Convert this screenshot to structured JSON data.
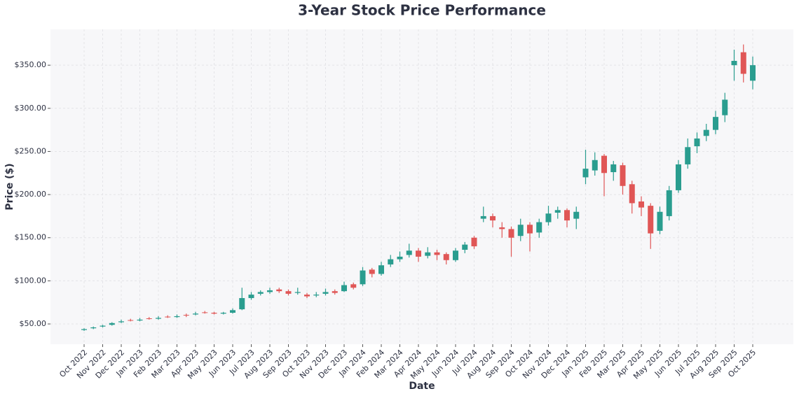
{
  "chart_data": {
    "type": "candlestick",
    "title": "3-Year Stock Price Performance",
    "x_label": "Date",
    "y_label": "Price ($)",
    "categories": [
      "Oct 2022",
      null,
      "Nov 2022",
      null,
      "Dec 2022",
      null,
      "Jan 2023",
      null,
      "Feb 2023",
      null,
      "Mar 2023",
      null,
      "Apr 2023",
      null,
      "May 2023",
      null,
      "Jun 2023",
      null,
      "Jul 2023",
      null,
      "Aug 2023",
      null,
      "Sep 2023",
      null,
      "Oct 2023",
      null,
      "Nov 2023",
      null,
      "Dec 2023",
      null,
      "Jan 2024",
      null,
      "Feb 2024",
      null,
      "Mar 2024",
      null,
      "Apr 2024",
      null,
      "May 2024",
      null,
      "Jun 2024",
      null,
      "Jul 2024",
      null,
      "Aug 2024",
      null,
      "Sep 2024",
      null,
      "Oct 2024",
      null,
      "Nov 2024",
      null,
      "Dec 2024",
      null,
      "Jan 2025",
      null,
      "Feb 2025",
      null,
      "Mar 2025",
      null,
      "Apr 2025",
      null,
      "May 2025",
      null,
      "Jun 2025",
      null,
      "Jul 2025",
      null,
      "Aug 2025",
      null,
      "Sep 2025",
      null,
      "Oct 2025"
    ],
    "open": [
      43,
      45,
      47,
      49,
      52,
      54.5,
      54,
      56.5,
      56,
      58.5,
      58,
      60.5,
      61,
      63.5,
      63,
      62,
      63,
      67,
      80,
      85,
      87,
      90,
      88,
      86,
      84,
      83,
      85,
      88,
      88,
      96,
      96,
      113,
      108,
      119,
      125,
      130,
      135,
      129,
      133,
      131,
      124,
      136,
      150,
      172,
      175,
      162,
      160,
      152,
      165,
      156,
      168,
      179,
      182,
      172,
      220,
      228,
      245,
      226,
      234,
      212,
      192,
      187,
      158,
      175,
      205,
      235,
      256,
      268,
      275,
      292,
      350,
      365,
      332
    ],
    "high": [
      45,
      47,
      49,
      52,
      55,
      56,
      57,
      58,
      59,
      60,
      61,
      62,
      64,
      65,
      64,
      64,
      68,
      92,
      87,
      89,
      92,
      92,
      90,
      92,
      86,
      87,
      91,
      90,
      99,
      98,
      116,
      115,
      122,
      130,
      134,
      143,
      138,
      139,
      136,
      133,
      138,
      145,
      152,
      186,
      178,
      168,
      163,
      172,
      168,
      172,
      187,
      186,
      184,
      186,
      252,
      249,
      247,
      239,
      237,
      216,
      198,
      190,
      186,
      210,
      240,
      265,
      272,
      282,
      297,
      318,
      368,
      374,
      360
    ],
    "low": [
      42,
      44,
      46,
      48,
      51,
      53,
      53,
      55,
      55,
      57,
      57,
      58,
      60,
      62,
      61,
      61,
      62,
      66,
      78,
      83,
      85,
      86,
      83,
      84,
      80,
      81,
      83,
      84,
      87,
      90,
      94,
      104,
      106,
      116,
      122,
      127,
      122,
      126,
      124,
      119,
      122,
      132,
      137,
      168,
      162,
      150,
      128,
      146,
      134,
      150,
      164,
      172,
      162,
      160,
      212,
      222,
      198,
      216,
      200,
      178,
      175,
      137,
      154,
      170,
      202,
      230,
      248,
      262,
      270,
      284,
      332,
      330,
      322
    ],
    "close": [
      44,
      46,
      48,
      51,
      53,
      54,
      55,
      56,
      57,
      58,
      59,
      60,
      62,
      63,
      62,
      63,
      66,
      80,
      84,
      87,
      89,
      88,
      85,
      87,
      82,
      84,
      87,
      86,
      95,
      92,
      112,
      108,
      118,
      125,
      128,
      135,
      128,
      133,
      130,
      124,
      135,
      142,
      140,
      175,
      170,
      160,
      150,
      165,
      155,
      168,
      178,
      182,
      170,
      180,
      230,
      240,
      225,
      235,
      210,
      190,
      185,
      155,
      180,
      205,
      235,
      255,
      265,
      275,
      290,
      310,
      355,
      340,
      350
    ],
    "up_color": "#2a9d8f",
    "down_color": "#e05656",
    "ylim": [
      26.5,
      391.5
    ],
    "yticks": [
      {
        "value": 50,
        "label": "$50.00"
      },
      {
        "value": 100,
        "label": "$100.00"
      },
      {
        "value": 150,
        "label": "$150.00"
      },
      {
        "value": 200,
        "label": "$200.00"
      },
      {
        "value": 250,
        "label": "$250.00"
      },
      {
        "value": 300,
        "label": "$300.00"
      },
      {
        "value": 350,
        "label": "$350.00"
      }
    ],
    "grid": true
  }
}
